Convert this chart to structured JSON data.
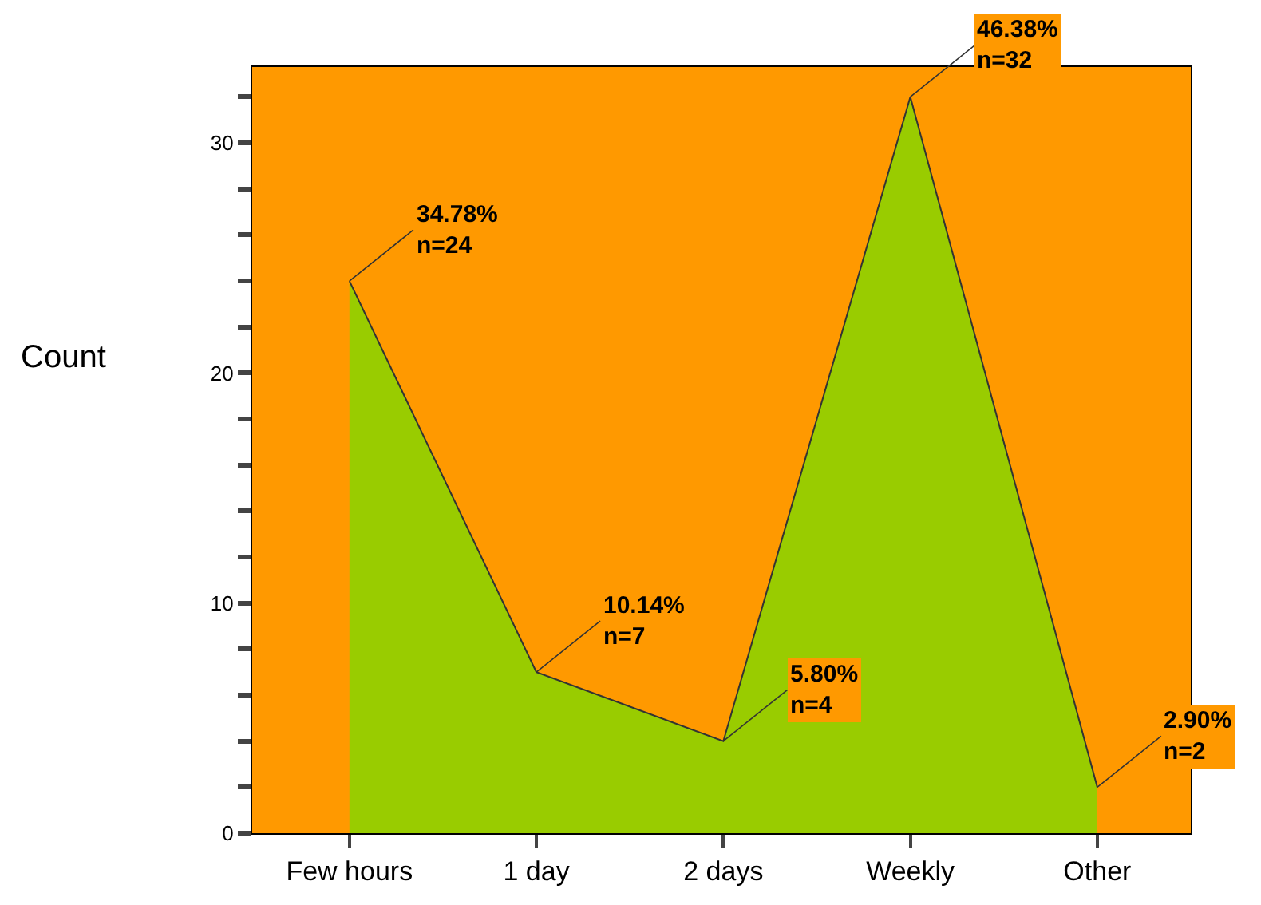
{
  "chart_data": {
    "type": "area",
    "ylabel": "Count",
    "categories": [
      "Few hours",
      "1 day",
      "2 days",
      "Weekly",
      "Other"
    ],
    "series": [
      {
        "color": "#99cc00",
        "values": [
          24,
          7,
          4,
          32,
          2
        ],
        "value_labels": [
          "34.78%\nn=24",
          "10.14%\nn=7",
          "5.80%\nn=4",
          "46.38%\nn=32",
          "2.90%\nn=2"
        ]
      }
    ],
    "ylim": [
      0,
      33.3
    ],
    "yticks": [
      0,
      {
        "value": 2,
        "label": null
      },
      {
        "value": 4,
        "label": null
      },
      {
        "value": 6,
        "label": null
      },
      {
        "value": 8,
        "label": null
      },
      10,
      {
        "value": 12,
        "label": null
      },
      {
        "value": 14,
        "label": null
      },
      {
        "value": 16,
        "label": null
      },
      {
        "value": 18,
        "label": null
      },
      20,
      {
        "value": 22,
        "label": null
      },
      {
        "value": 24,
        "label": null
      },
      {
        "value": 26,
        "label": null
      },
      {
        "value": 28,
        "label": null
      },
      30,
      {
        "value": 32,
        "label": null
      }
    ],
    "grid": false
  }
}
